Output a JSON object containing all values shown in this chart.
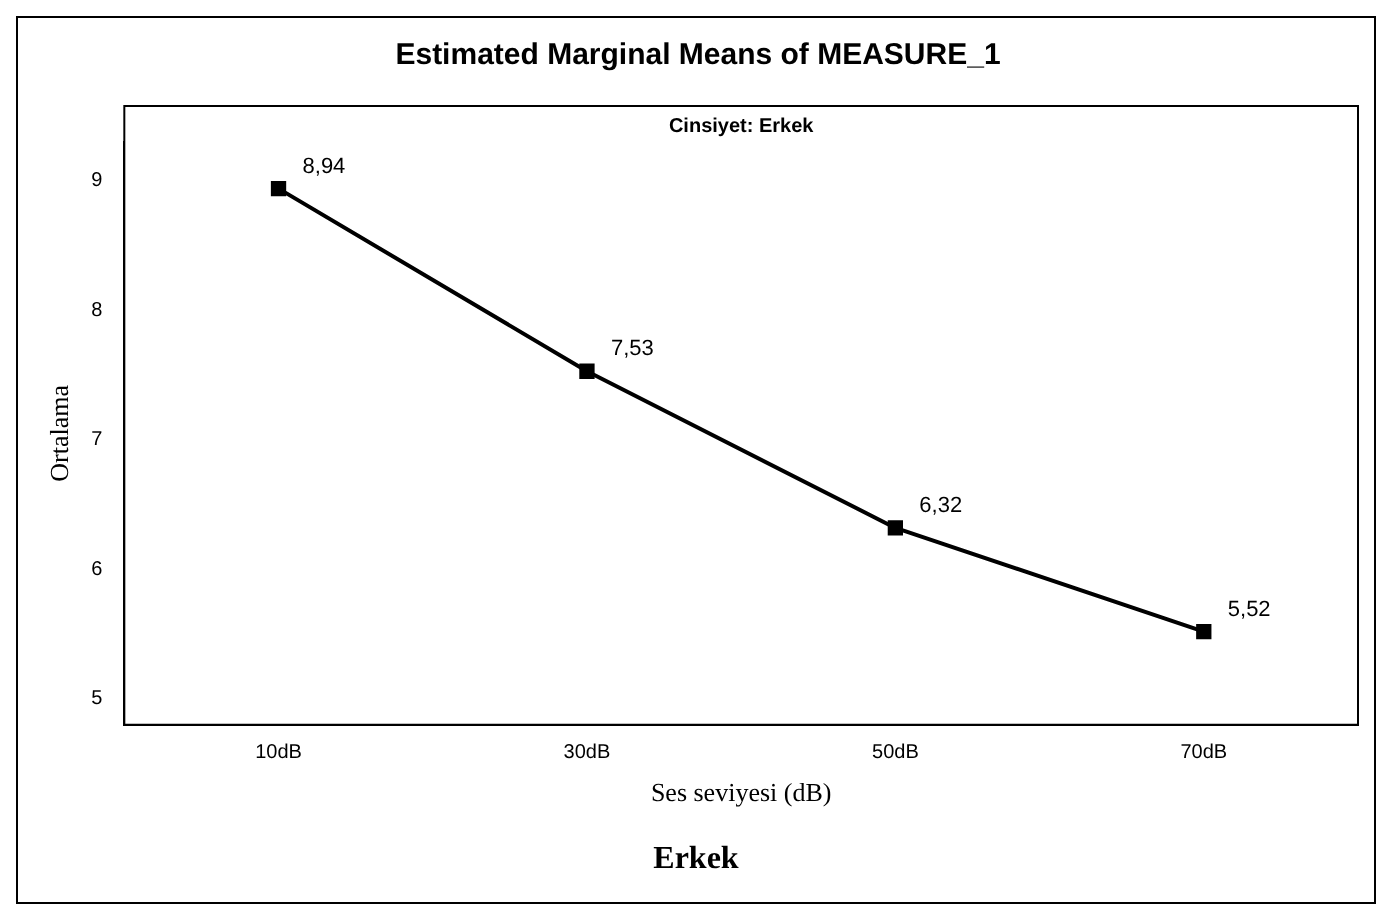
{
  "chart_data": {
    "type": "line",
    "title": "Estimated Marginal Means of MEASURE_1",
    "subtitle": "Cinsiyet: Erkek",
    "xlabel": "Ses seviyesi (dB)",
    "ylabel": "Ortalama",
    "categories": [
      "10dB",
      "30dB",
      "50dB",
      "70dB"
    ],
    "series": [
      {
        "color": "#000000",
        "values": [
          8.94,
          7.53,
          6.32,
          5.52
        ],
        "value_labels": [
          "8,94",
          "7,53",
          "6,32",
          "5,52"
        ]
      }
    ],
    "ylim": [
      4.8,
      9.3
    ],
    "yticks": [
      5,
      6,
      7,
      8,
      9
    ],
    "grid": false,
    "legend": false,
    "marker": "square",
    "line_style": "solid",
    "annotations": [
      "Erkek"
    ]
  }
}
